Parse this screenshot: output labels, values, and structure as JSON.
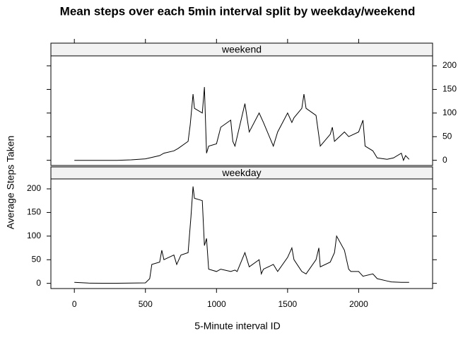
{
  "chart_data": {
    "type": "line",
    "title": "Mean steps over each 5min interval split by weekday/weekend",
    "xlabel": "5-Minute interval ID",
    "ylabel": "Average Steps Taken",
    "xlim": [
      -165,
      2520
    ],
    "xticks": [
      0,
      500,
      1000,
      1500,
      2000
    ],
    "ylim": [
      -11,
      221
    ],
    "yticks": [
      0,
      50,
      100,
      150,
      200
    ],
    "color": "#000000",
    "panels": [
      {
        "strip": "weekend",
        "x": [
          0,
          100,
          200,
          300,
          400,
          500,
          530,
          600,
          630,
          700,
          730,
          800,
          815,
          835,
          845,
          900,
          915,
          930,
          945,
          1000,
          1030,
          1100,
          1115,
          1130,
          1200,
          1215,
          1230,
          1300,
          1330,
          1400,
          1430,
          1500,
          1530,
          1545,
          1600,
          1615,
          1630,
          1700,
          1730,
          1800,
          1815,
          1830,
          1900,
          1930,
          2000,
          2030,
          2045,
          2100,
          2130,
          2200,
          2245,
          2300,
          2315,
          2330,
          2355
        ],
        "values": [
          0,
          0,
          0,
          0,
          1,
          3,
          5,
          10,
          15,
          20,
          25,
          40,
          75,
          140,
          110,
          100,
          155,
          15,
          30,
          35,
          70,
          85,
          40,
          30,
          120,
          90,
          60,
          100,
          80,
          30,
          60,
          100,
          80,
          90,
          110,
          140,
          110,
          95,
          30,
          55,
          70,
          40,
          60,
          50,
          60,
          85,
          30,
          20,
          5,
          2,
          5,
          15,
          0,
          10,
          2
        ]
      },
      {
        "strip": "weekday",
        "x": [
          0,
          100,
          200,
          300,
          400,
          500,
          530,
          545,
          600,
          615,
          630,
          700,
          720,
          750,
          800,
          820,
          835,
          845,
          900,
          915,
          930,
          945,
          1000,
          1030,
          1100,
          1130,
          1145,
          1200,
          1215,
          1230,
          1300,
          1315,
          1330,
          1400,
          1430,
          1500,
          1530,
          1545,
          1600,
          1630,
          1700,
          1720,
          1730,
          1800,
          1830,
          1845,
          1900,
          1930,
          1945,
          2000,
          2030,
          2100,
          2130,
          2200,
          2230,
          2300,
          2355
        ],
        "values": [
          2,
          0.5,
          0.3,
          0.2,
          0.5,
          1,
          10,
          40,
          45,
          70,
          50,
          60,
          40,
          60,
          65,
          140,
          205,
          180,
          175,
          80,
          95,
          30,
          25,
          30,
          25,
          28,
          25,
          65,
          50,
          35,
          50,
          20,
          30,
          40,
          25,
          55,
          75,
          50,
          25,
          20,
          50,
          75,
          35,
          45,
          65,
          100,
          70,
          30,
          25,
          25,
          15,
          20,
          10,
          5,
          3,
          2,
          2
        ]
      }
    ]
  }
}
